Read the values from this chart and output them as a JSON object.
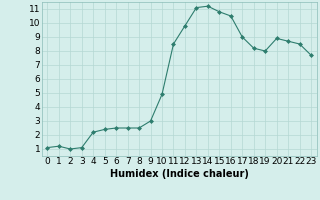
{
  "x": [
    0,
    1,
    2,
    3,
    4,
    5,
    6,
    7,
    8,
    9,
    10,
    11,
    12,
    13,
    14,
    15,
    16,
    17,
    18,
    19,
    20,
    21,
    22,
    23
  ],
  "y": [
    1.1,
    1.2,
    1.0,
    1.1,
    2.2,
    2.4,
    2.5,
    2.5,
    2.5,
    3.0,
    4.9,
    8.5,
    9.8,
    11.1,
    11.2,
    10.8,
    10.5,
    9.0,
    8.2,
    8.0,
    8.9,
    8.7,
    8.5,
    7.7
  ],
  "line_color": "#2e7d6e",
  "marker_color": "#2e7d6e",
  "bg_color": "#d5eeeb",
  "grid_color": "#b5d8d3",
  "xlabel": "Humidex (Indice chaleur)",
  "ylim": [
    0.5,
    11.5
  ],
  "xlim": [
    -0.5,
    23.5
  ],
  "yticks": [
    1,
    2,
    3,
    4,
    5,
    6,
    7,
    8,
    9,
    10,
    11
  ],
  "xticks": [
    0,
    1,
    2,
    3,
    4,
    5,
    6,
    7,
    8,
    9,
    10,
    11,
    12,
    13,
    14,
    15,
    16,
    17,
    18,
    19,
    20,
    21,
    22,
    23
  ],
  "xlabel_fontsize": 7,
  "tick_fontsize": 6.5
}
